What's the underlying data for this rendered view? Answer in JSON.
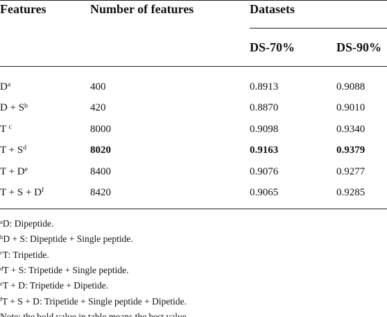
{
  "table": {
    "header": {
      "features": "Features",
      "number": "Number of features",
      "datasets": "Datasets",
      "ds70": "DS-70%",
      "ds90": "DS-90%"
    },
    "rows": [
      [
        {
          "text": "D",
          "sup": "a"
        },
        "400",
        "0.8913",
        "0.9088"
      ],
      [
        {
          "text": "D + S",
          "sup": "b"
        },
        "420",
        "0.8870",
        "0.9010"
      ],
      [
        {
          "text": "T ",
          "sup": "c"
        },
        "8000",
        "0.9098",
        "0.9340"
      ],
      [
        {
          "text": "T + S",
          "sup": "d"
        },
        "8020",
        "0.9163",
        "0.9379"
      ],
      [
        {
          "text": "T + D",
          "sup": "e"
        },
        "8400",
        "0.9076",
        "0.9277"
      ],
      [
        {
          "text": "T + S + D",
          "sup": "f"
        },
        "8420",
        "0.9065",
        "0.9285"
      ]
    ],
    "footnotes": [
      {
        "sup": "a",
        "text": "D: Dipeptide."
      },
      {
        "sup": "b",
        "text": "D + S: Dipeptide + Single peptide."
      },
      {
        "sup": "c",
        "text": "T: Tripetide."
      },
      {
        "sup": "d",
        "text": "T + S: Tripetide + Single peptide."
      },
      {
        "sup": "e",
        "text": "T + D: Tripetide + Dipetide."
      },
      {
        "sup": "f",
        "text": "T + S + D: Tripetide + Single peptide + Dipetide."
      }
    ],
    "note": "Note: the bold value in table means the best value."
  }
}
